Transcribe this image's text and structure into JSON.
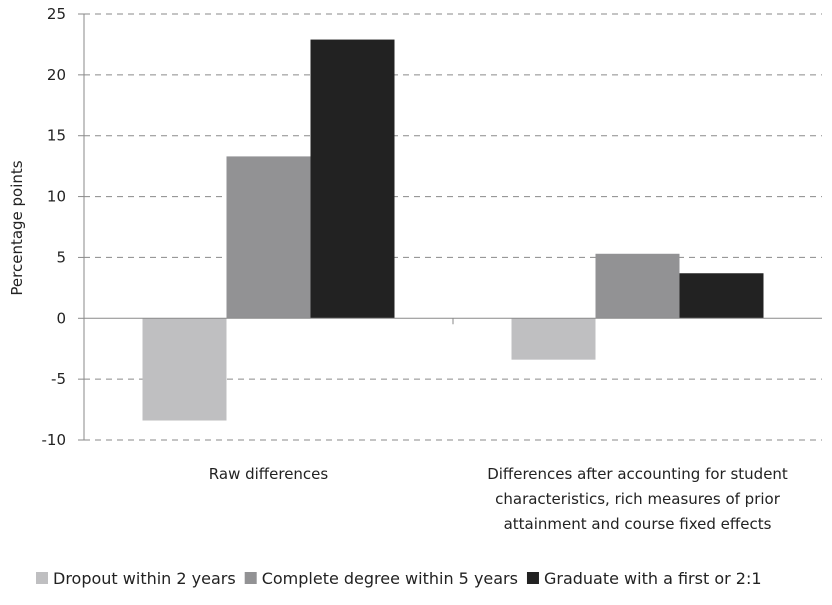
{
  "chart_data": {
    "type": "bar",
    "title": "",
    "xlabel": "",
    "ylabel": "Percentage points",
    "ylim": [
      -10,
      25
    ],
    "yticks": [
      25,
      20,
      15,
      10,
      5,
      0,
      -5,
      -10
    ],
    "grid": true,
    "legend_position": "bottom",
    "categories": [
      [
        "Raw differences"
      ],
      [
        "Differences after accounting for student",
        "characteristics, rich measures of prior",
        "attainment and course fixed effects"
      ]
    ],
    "series": [
      {
        "name": "Dropout within 2 years",
        "color": "#bfbfc1",
        "values": [
          -8.4,
          -3.4
        ]
      },
      {
        "name": "Complete degree within 5 years",
        "color": "#929294",
        "values": [
          13.3,
          5.3
        ]
      },
      {
        "name": "Graduate with a first or 2:1",
        "color": "#222222",
        "values": [
          22.9,
          3.7
        ]
      }
    ]
  }
}
